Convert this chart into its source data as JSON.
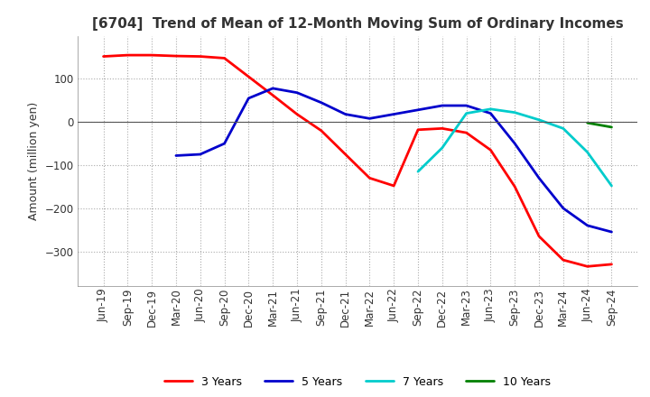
{
  "title": "[6704]  Trend of Mean of 12-Month Moving Sum of Ordinary Incomes",
  "ylabel": "Amount (million yen)",
  "x_labels": [
    "Jun-19",
    "Sep-19",
    "Dec-19",
    "Mar-20",
    "Jun-20",
    "Sep-20",
    "Dec-20",
    "Mar-21",
    "Jun-21",
    "Sep-21",
    "Dec-21",
    "Mar-22",
    "Jun-22",
    "Sep-22",
    "Dec-22",
    "Mar-23",
    "Jun-23",
    "Sep-23",
    "Dec-23",
    "Mar-24",
    "Jun-24",
    "Sep-24"
  ],
  "ylim": [
    -380,
    200
  ],
  "yticks": [
    100,
    0,
    -100,
    -200,
    -300
  ],
  "series": {
    "3 Years": {
      "color": "#ff0000",
      "values": [
        152,
        155,
        155,
        153,
        152,
        148,
        105,
        62,
        18,
        -20,
        -75,
        -130,
        -148,
        -18,
        -15,
        -25,
        -65,
        -150,
        -265,
        -320,
        -335,
        -330
      ]
    },
    "5 Years": {
      "color": "#0000cc",
      "values": [
        null,
        null,
        null,
        -78,
        -75,
        -50,
        55,
        78,
        68,
        45,
        18,
        8,
        18,
        28,
        38,
        38,
        20,
        -50,
        -130,
        -200,
        -240,
        -255
      ]
    },
    "7 Years": {
      "color": "#00cccc",
      "values": [
        null,
        null,
        null,
        null,
        null,
        null,
        null,
        null,
        null,
        null,
        null,
        null,
        null,
        -115,
        -60,
        20,
        30,
        22,
        5,
        -15,
        -70,
        -148
      ]
    },
    "10 Years": {
      "color": "#008000",
      "values": [
        null,
        null,
        null,
        null,
        null,
        null,
        null,
        null,
        null,
        null,
        null,
        null,
        null,
        null,
        null,
        null,
        null,
        null,
        null,
        null,
        -2,
        -12
      ]
    }
  },
  "background_color": "#ffffff",
  "grid_color": "#aaaaaa",
  "title_fontsize": 11,
  "label_fontsize": 9,
  "tick_fontsize": 8.5
}
